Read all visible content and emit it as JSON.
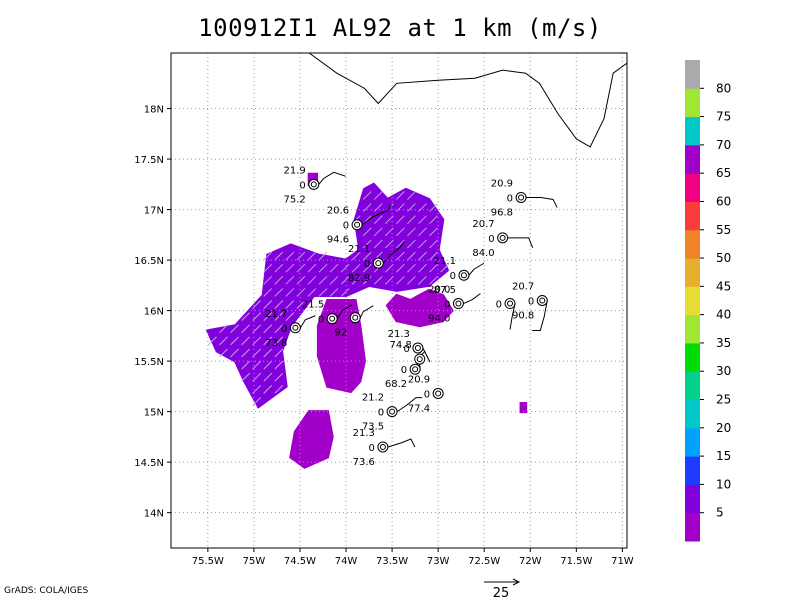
{
  "title": "100912I1 AL92 at 1 km (m/s)",
  "credit": "GrADS: COLA/IGES",
  "map": {
    "lon_range": [
      -75.9,
      -70.95
    ],
    "lat_range": [
      13.65,
      18.55
    ],
    "x_ticks": [
      {
        "lon": -75.5,
        "label": "75.5W"
      },
      {
        "lon": -75.0,
        "label": "75W"
      },
      {
        "lon": -74.5,
        "label": "74.5W"
      },
      {
        "lon": -74.0,
        "label": "74W"
      },
      {
        "lon": -73.5,
        "label": "73.5W"
      },
      {
        "lon": -73.0,
        "label": "73W"
      },
      {
        "lon": -72.5,
        "label": "72.5W"
      },
      {
        "lon": -72.0,
        "label": "72W"
      },
      {
        "lon": -71.5,
        "label": "71.5W"
      },
      {
        "lon": -71.0,
        "label": "71W"
      }
    ],
    "y_ticks": [
      {
        "lat": 14.0,
        "label": "14N"
      },
      {
        "lat": 14.5,
        "label": "14.5N"
      },
      {
        "lat": 15.0,
        "label": "15N"
      },
      {
        "lat": 15.5,
        "label": "15.5N"
      },
      {
        "lat": 16.0,
        "label": "16N"
      },
      {
        "lat": 16.5,
        "label": "16.5N"
      },
      {
        "lat": 17.0,
        "label": "17N"
      },
      {
        "lat": 17.5,
        "label": "17.5N"
      },
      {
        "lat": 18.0,
        "label": "18N"
      }
    ],
    "coastline": [
      [
        -74.4,
        18.55
      ],
      [
        -74.1,
        18.35
      ],
      [
        -73.8,
        18.2
      ],
      [
        -73.65,
        18.05
      ],
      [
        -73.45,
        18.25
      ],
      [
        -73.0,
        18.28
      ],
      [
        -72.6,
        18.3
      ],
      [
        -72.3,
        18.38
      ],
      [
        -72.05,
        18.35
      ],
      [
        -71.9,
        18.25
      ],
      [
        -71.7,
        17.95
      ],
      [
        -71.5,
        17.7
      ],
      [
        -71.35,
        17.62
      ],
      [
        -71.2,
        17.9
      ],
      [
        -71.1,
        18.35
      ],
      [
        -70.95,
        18.45
      ]
    ],
    "wind_regions": [
      {
        "value_band": "5-10",
        "color": "#a000c8",
        "points": [
          [
            -74.2,
            16.1
          ],
          [
            -73.9,
            16.1
          ],
          [
            -73.85,
            15.85
          ],
          [
            -73.8,
            15.5
          ],
          [
            -73.85,
            15.3
          ],
          [
            -73.95,
            15.2
          ],
          [
            -74.2,
            15.25
          ],
          [
            -74.3,
            15.55
          ],
          [
            -74.3,
            15.85
          ]
        ]
      },
      {
        "value_band": "5-10",
        "color": "#a000c8",
        "points": [
          [
            -73.45,
            16.15
          ],
          [
            -73.3,
            16.1
          ],
          [
            -73.1,
            16.2
          ],
          [
            -72.95,
            16.15
          ],
          [
            -72.85,
            16.0
          ],
          [
            -72.95,
            15.9
          ],
          [
            -73.2,
            15.85
          ],
          [
            -73.45,
            15.9
          ],
          [
            -73.55,
            16.05
          ]
        ]
      },
      {
        "value_band": "5-10",
        "color": "#a000c8",
        "points": [
          [
            -74.4,
            15.0
          ],
          [
            -74.2,
            15.0
          ],
          [
            -74.15,
            14.75
          ],
          [
            -74.2,
            14.55
          ],
          [
            -74.45,
            14.45
          ],
          [
            -74.6,
            14.55
          ],
          [
            -74.55,
            14.8
          ]
        ]
      },
      {
        "value_band": "5-10",
        "color": "#a000c8",
        "points": [
          [
            -74.4,
            17.35
          ],
          [
            -74.32,
            17.35
          ],
          [
            -74.32,
            17.25
          ],
          [
            -74.4,
            17.25
          ]
        ]
      },
      {
        "value_band": "5-10",
        "color": "#a000c8",
        "points": [
          [
            -72.1,
            15.08
          ],
          [
            -72.05,
            15.08
          ],
          [
            -72.05,
            15.0
          ],
          [
            -72.1,
            15.0
          ]
        ]
      },
      {
        "value_band": "10-15",
        "color": "#8200dc",
        "points": [
          [
            -73.8,
            17.2
          ],
          [
            -73.7,
            17.25
          ],
          [
            -73.55,
            17.1
          ],
          [
            -73.35,
            17.2
          ],
          [
            -73.1,
            17.1
          ],
          [
            -72.95,
            16.9
          ],
          [
            -73.0,
            16.6
          ],
          [
            -72.9,
            16.4
          ],
          [
            -73.1,
            16.25
          ],
          [
            -73.45,
            16.2
          ],
          [
            -73.75,
            16.25
          ],
          [
            -74.0,
            16.15
          ],
          [
            -74.35,
            16.15
          ],
          [
            -74.6,
            15.85
          ],
          [
            -74.7,
            15.6
          ],
          [
            -74.65,
            15.25
          ],
          [
            -74.95,
            15.05
          ],
          [
            -75.1,
            15.3
          ],
          [
            -75.2,
            15.5
          ],
          [
            -75.4,
            15.6
          ],
          [
            -75.5,
            15.8
          ],
          [
            -75.2,
            15.85
          ],
          [
            -74.9,
            16.15
          ],
          [
            -74.85,
            16.55
          ],
          [
            -74.6,
            16.65
          ],
          [
            -74.3,
            16.55
          ],
          [
            -74.0,
            16.5
          ],
          [
            -73.85,
            16.6
          ],
          [
            -73.9,
            16.9
          ]
        ]
      }
    ],
    "stations": [
      {
        "lon": -74.35,
        "lat": 17.25,
        "top": "21.9",
        "mid": "0",
        "bottom": "75.2",
        "flag": [
          [
            10,
            -6
          ],
          [
            20,
            -12
          ],
          [
            32,
            -8
          ]
        ]
      },
      {
        "lon": -73.88,
        "lat": 16.85,
        "top": "20.6",
        "mid": "0",
        "bottom": "94.6",
        "flag": [
          [
            16,
            -8
          ],
          [
            30,
            -14
          ],
          [
            34,
            -20
          ]
        ]
      },
      {
        "lon": -73.65,
        "lat": 16.47,
        "top": "21.1",
        "mid": "0",
        "bottom": "82.9",
        "flag": [
          [
            12,
            -8
          ],
          [
            22,
            -16
          ],
          [
            26,
            -22
          ]
        ]
      },
      {
        "lon": -72.72,
        "lat": 16.35,
        "top": "21.1",
        "mid": "0",
        "bottom": "87.5",
        "flag": [
          [
            10,
            -6
          ],
          [
            20,
            -12
          ]
        ]
      },
      {
        "lon": -72.1,
        "lat": 17.12,
        "top": "20.9",
        "mid": "0",
        "bottom": "96.8",
        "flag": [
          [
            20,
            0
          ],
          [
            32,
            2
          ],
          [
            36,
            10
          ]
        ]
      },
      {
        "lon": -72.3,
        "lat": 16.72,
        "top": "20.7",
        "mid": "0",
        "bottom": "84.0",
        "flag": [
          [
            26,
            0
          ],
          [
            30,
            10
          ]
        ]
      },
      {
        "lon": -72.78,
        "lat": 16.07,
        "top": "20.0",
        "mid": "0",
        "bottom": "94.0",
        "flag": [
          [
            14,
            -4
          ],
          [
            22,
            -10
          ]
        ]
      },
      {
        "lon": -72.22,
        "lat": 16.07,
        "top": "",
        "mid": "0",
        "bottom": "",
        "flag": [
          [
            2,
            14
          ],
          [
            0,
            26
          ]
        ]
      },
      {
        "lon": -71.87,
        "lat": 16.1,
        "top": "20.7",
        "mid": "0",
        "bottom": "90.8",
        "flag": [
          [
            2,
            16
          ],
          [
            -2,
            30
          ],
          [
            -10,
            30
          ]
        ]
      },
      {
        "lon": -74.15,
        "lat": 15.92,
        "top": "21.5",
        "mid": "0",
        "bottom": "",
        "flag": [
          [
            10,
            -8
          ],
          [
            20,
            -14
          ]
        ]
      },
      {
        "lon": -73.9,
        "lat": 15.93,
        "top": "",
        "mid": "",
        "bottom": "92",
        "flag": [
          [
            8,
            -6
          ],
          [
            18,
            -12
          ]
        ]
      },
      {
        "lon": -74.55,
        "lat": 15.83,
        "top": "21.7",
        "mid": "0",
        "bottom": "73.8",
        "flag": [
          [
            10,
            -8
          ],
          [
            20,
            -12
          ]
        ]
      },
      {
        "lon": -73.22,
        "lat": 15.63,
        "top": "21.3",
        "mid": "0",
        "bottom": "",
        "flag": [
          [
            8,
            6
          ],
          [
            12,
            14
          ]
        ]
      },
      {
        "lon": -73.25,
        "lat": 15.42,
        "top": "",
        "mid": "0",
        "bottom": "68.2",
        "flag": [
          [
            4,
            -12
          ],
          [
            10,
            -18
          ]
        ]
      },
      {
        "lon": -73.2,
        "lat": 15.52,
        "top": "74.8",
        "mid": "",
        "bottom": "",
        "flag": []
      },
      {
        "lon": -73.0,
        "lat": 15.18,
        "top": "20.9",
        "mid": "0",
        "bottom": "77.4",
        "flag": []
      },
      {
        "lon": -73.5,
        "lat": 15.0,
        "top": "21.2",
        "mid": "0",
        "bottom": "73.5",
        "flag": [
          [
            14,
            -6
          ],
          [
            24,
            -14
          ],
          [
            30,
            -14
          ]
        ]
      },
      {
        "lon": -73.6,
        "lat": 14.65,
        "top": "21.3",
        "mid": "0",
        "bottom": "73.6",
        "flag": [
          [
            18,
            -4
          ],
          [
            28,
            -8
          ],
          [
            32,
            0
          ]
        ]
      }
    ]
  },
  "colorbar": {
    "labels": [
      "5",
      "10",
      "15",
      "20",
      "25",
      "30",
      "35",
      "40",
      "45",
      "50",
      "55",
      "60",
      "65",
      "70",
      "75",
      "80"
    ],
    "colors": [
      "#a000c8",
      "#8200dc",
      "#1e3cff",
      "#00a0ff",
      "#00c8c8",
      "#00d28c",
      "#00dc00",
      "#a0e632",
      "#e6dc32",
      "#e6af2d",
      "#f08228",
      "#fa3c3c",
      "#f00082",
      "#a000c8",
      "#00c8c8",
      "#a0e632",
      "#aaaaaa"
    ]
  },
  "scale_arrow": {
    "label": "25"
  }
}
